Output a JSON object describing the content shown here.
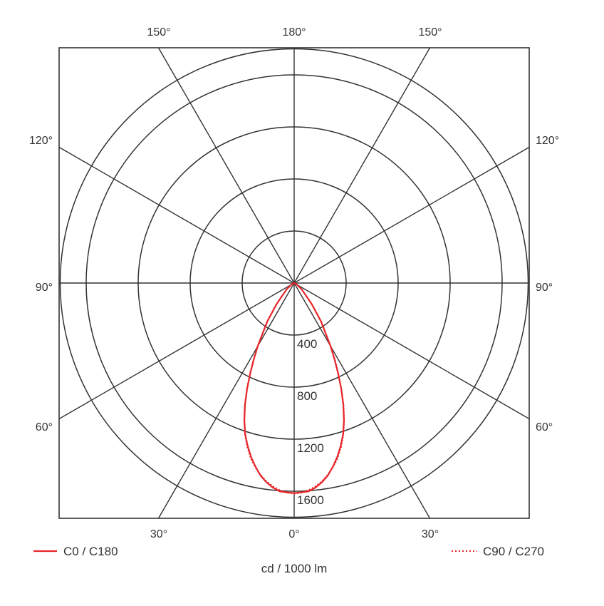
{
  "chart_data": {
    "type": "polar-line",
    "title": "",
    "unit_label": "cd / 1000 lm",
    "radial_max": 1800,
    "rings": [
      400,
      800,
      1200,
      1600
    ],
    "ring_labels": [
      "400",
      "800",
      "1200",
      "1600"
    ],
    "angle_labels": {
      "top": [
        "150°",
        "180°",
        "150°"
      ],
      "left": [
        "120°",
        "90°",
        "60°"
      ],
      "right": [
        "120°",
        "90°",
        "60°"
      ],
      "bottom": [
        "30°",
        "0°",
        "30°"
      ]
    },
    "colors": {
      "series": "#e8262b",
      "grid": "#333333"
    },
    "series": [
      {
        "name": "C0 / C180",
        "style": "solid",
        "angles": [
          0,
          2,
          4,
          6,
          8,
          10,
          12,
          14,
          16,
          18,
          20,
          22,
          24,
          26,
          28,
          30,
          35,
          40,
          50,
          60,
          70,
          80,
          90
        ],
        "values": [
          1615,
          1610,
          1605,
          1580,
          1545,
          1500,
          1440,
          1375,
          1300,
          1220,
          1120,
          1010,
          890,
          770,
          660,
          560,
          360,
          210,
          75,
          25,
          8,
          2,
          0
        ]
      },
      {
        "name": "C90 / C270",
        "style": "dotted",
        "angles": [
          0,
          2,
          4,
          6,
          8,
          10,
          12,
          14,
          16,
          18,
          20,
          22,
          24,
          26,
          28,
          30,
          35,
          40,
          50,
          60,
          70,
          80,
          90
        ],
        "values": [
          1620,
          1612,
          1595,
          1570,
          1538,
          1495,
          1445,
          1385,
          1310,
          1225,
          1125,
          1015,
          895,
          775,
          665,
          565,
          365,
          215,
          78,
          26,
          8,
          2,
          0
        ]
      }
    ]
  }
}
